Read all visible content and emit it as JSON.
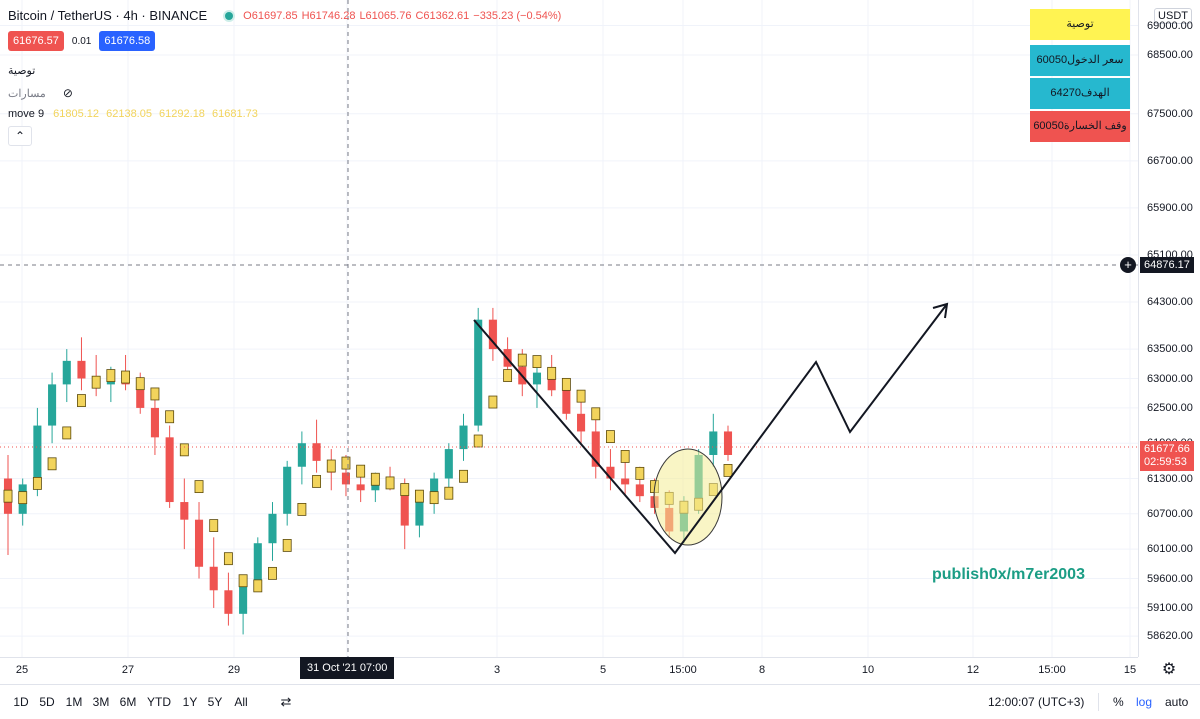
{
  "legend": {
    "symbol": "Bitcoin / TetherUS · 4h · BINANCE",
    "open": "O61697.85",
    "high": "H61746.28",
    "low": "L61065.76",
    "close": "C61362.61",
    "change": "−335.23 (−0.54%)",
    "sell_price": "61676.57",
    "spread": "0.01",
    "buy_price": "61676.58",
    "indicator1": "توصية",
    "indicator2": "مسارات",
    "indicator3_name": "move 9",
    "indicator3_values": [
      "61805.12",
      "62138.05",
      "61292.18",
      "61681.73"
    ]
  },
  "notes": {
    "title": "توصية",
    "entry": "سعر الدخول60050",
    "target": "الهدف64270",
    "stop": "وقف الخسارة60050"
  },
  "watermark": "publish0x/m7er2003",
  "price_axis": {
    "currency": "USDT",
    "ticks": [
      "69000.00",
      "68500.00",
      "67500.00",
      "66700.00",
      "65900.00",
      "65100.00",
      "64300.00",
      "63500.00",
      "63000.00",
      "62500.00",
      "61900.00",
      "61300.00",
      "60700.00",
      "60100.00",
      "59600.00",
      "59100.00",
      "58620.00"
    ],
    "crosshair_price": "64876.17",
    "last_price": "61677.66",
    "countdown": "02:59:53"
  },
  "time_axis": {
    "labels": [
      "25",
      "27",
      "29",
      "3",
      "5",
      "15:00",
      "8",
      "10",
      "12",
      "15:00",
      "15"
    ],
    "cursor_label": "31 Oct '21   07:00"
  },
  "bottom_bar": {
    "ranges": [
      "1D",
      "5D",
      "1M",
      "3M",
      "6M",
      "YTD",
      "1Y",
      "5Y",
      "All"
    ],
    "clock": "12:00:07 (UTC+3)",
    "percent": "%",
    "log": "log",
    "auto": "auto"
  },
  "colors": {
    "up": "#26a69a",
    "down": "#ef5350",
    "ma": "#f2d45c",
    "entry_box": "#26b8cf",
    "title_box": "#fff352",
    "stop_box": "#ef5350"
  },
  "chart_data": {
    "type": "candlestick",
    "interval": "4h",
    "symbol": "BTCUSDT",
    "price_range": [
      58300,
      69400
    ],
    "candles": [
      [
        61300,
        61700,
        60000,
        60700
      ],
      [
        60700,
        61300,
        60500,
        61200
      ],
      [
        61200,
        62500,
        61000,
        62200
      ],
      [
        62200,
        63100,
        61900,
        62900
      ],
      [
        62900,
        63500,
        62600,
        63300
      ],
      [
        63300,
        63700,
        62800,
        63000
      ],
      [
        63000,
        63400,
        62700,
        62900
      ],
      [
        62900,
        63200,
        62600,
        63100
      ],
      [
        63100,
        63400,
        62800,
        62900
      ],
      [
        62900,
        63100,
        62400,
        62500
      ],
      [
        62500,
        62800,
        61700,
        62000
      ],
      [
        62000,
        62200,
        60800,
        60900
      ],
      [
        60900,
        61300,
        60100,
        60600
      ],
      [
        60600,
        60900,
        59600,
        59800
      ],
      [
        59800,
        60300,
        59100,
        59400
      ],
      [
        59400,
        59700,
        58800,
        59000
      ],
      [
        59000,
        59600,
        58650,
        59500
      ],
      [
        59500,
        60300,
        59400,
        60200
      ],
      [
        60200,
        60900,
        59900,
        60700
      ],
      [
        60700,
        61600,
        60500,
        61500
      ],
      [
        61500,
        62100,
        61200,
        61900
      ],
      [
        61900,
        62300,
        61400,
        61600
      ],
      [
        61600,
        61800,
        61100,
        61400
      ],
      [
        61400,
        61700,
        61000,
        61200
      ],
      [
        61200,
        61500,
        60900,
        61100
      ],
      [
        61100,
        61400,
        60900,
        61300
      ],
      [
        61300,
        61500,
        61100,
        61200
      ],
      [
        61200,
        61300,
        60100,
        60500
      ],
      [
        60500,
        61000,
        60300,
        60900
      ],
      [
        60900,
        61400,
        60700,
        61300
      ],
      [
        61300,
        61900,
        61100,
        61800
      ],
      [
        61800,
        62400,
        61600,
        62200
      ],
      [
        62200,
        64200,
        62100,
        64000
      ],
      [
        64000,
        64200,
        63300,
        63500
      ],
      [
        63500,
        63700,
        63000,
        63200
      ],
      [
        63200,
        63500,
        62700,
        62900
      ],
      [
        62900,
        63300,
        62500,
        63100
      ],
      [
        63100,
        63400,
        62700,
        62800
      ],
      [
        62800,
        63000,
        62300,
        62400
      ],
      [
        62400,
        62700,
        61900,
        62100
      ],
      [
        62100,
        62300,
        61300,
        61500
      ],
      [
        61500,
        61800,
        61100,
        61300
      ],
      [
        61300,
        61600,
        61000,
        61200
      ],
      [
        61200,
        61500,
        60900,
        61000
      ],
      [
        61000,
        61300,
        60700,
        60800
      ],
      [
        60800,
        61100,
        60300,
        60400
      ],
      [
        60400,
        61000,
        60200,
        60900
      ],
      [
        60900,
        61800,
        60700,
        61700
      ],
      [
        61700,
        62400,
        61500,
        62100
      ],
      [
        62100,
        62200,
        61600,
        61700
      ]
    ]
  }
}
